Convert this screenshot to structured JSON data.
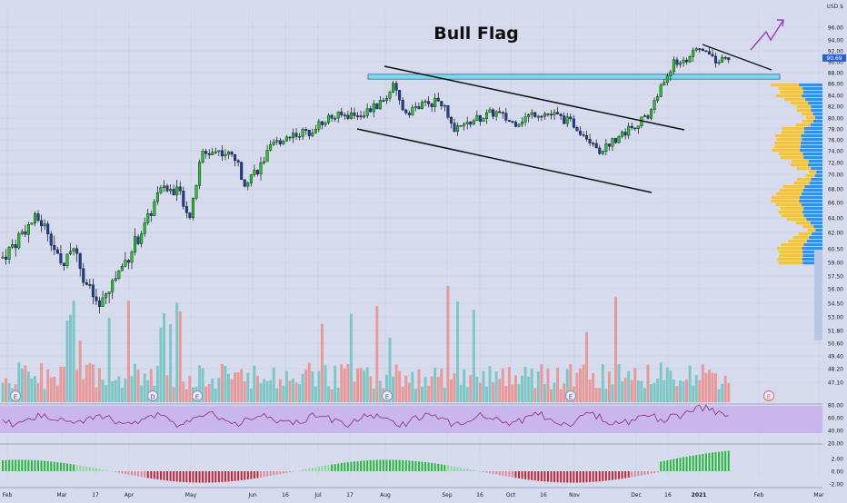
{
  "chart_data": {
    "type": "candlestick",
    "title": "Bull Flag",
    "currency": "USD",
    "currency_symbol": "$",
    "last_price_label": "90.69",
    "price_axis": {
      "ticks": [
        "96.00",
        "94.00",
        "92.00",
        "90.00",
        "88.00",
        "86.00",
        "84.00",
        "82.00",
        "80.00",
        "78.00",
        "76.00",
        "74.00",
        "72.00",
        "70.00",
        "68.00",
        "66.00",
        "64.00",
        "62.00",
        "60.50",
        "59.00",
        "57.50",
        "56.00",
        "54.50",
        "53.00",
        "51.80",
        "50.60",
        "49.40",
        "48.20",
        "47.10"
      ]
    },
    "rsi_axis": {
      "ticks": [
        "80.00",
        "60.00",
        "40.00",
        "20.00"
      ],
      "ylim": [
        20,
        80
      ]
    },
    "macd_axis": {
      "ticks": [
        "2.00",
        "0.00",
        "-2.00"
      ],
      "ylim": [
        -2.4,
        2.4
      ]
    },
    "time_axis": {
      "labels": [
        "Feb",
        "Mar",
        "17",
        "Apr",
        "May",
        "Jun",
        "16",
        "Jul",
        "17",
        "Aug",
        "Sep",
        "16",
        "Oct",
        "16",
        "Nov",
        "Dec",
        "16",
        "2021",
        "Feb",
        "Mar"
      ]
    },
    "event_markers": [
      "E",
      "D",
      "E",
      "E",
      "E",
      "E"
    ],
    "annotations": {
      "pattern_label": "Bull Flag",
      "resistance_zone": [
        86.8,
        87.7
      ]
    },
    "colors": {
      "up": "#22c52e",
      "down": "#1f3fa0",
      "vol_up": "#7fc6c6",
      "vol_down": "#e89a9a",
      "rsi_line": "#8e2a7a",
      "rsi_band": "#c9b6ec",
      "zone": "#7fd8e8",
      "arrow": "#9b3bc8",
      "profile_up": "#f0c44a",
      "profile_down": "#3a8ee0"
    },
    "ohlc": {
      "open_start": 59.2,
      "series_note": "daily candles Feb 2020 - Jan 2021"
    }
  }
}
